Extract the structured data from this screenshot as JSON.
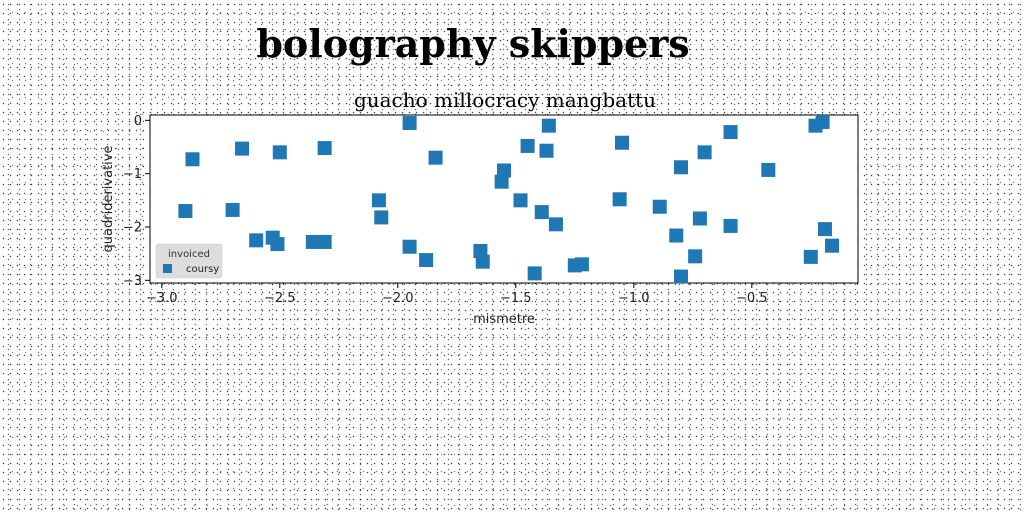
{
  "chart_data": {
    "type": "scatter",
    "title": "bolography skippers",
    "subtitle": "guacho millocracy mangbattu",
    "xlabel": "mismetre",
    "ylabel": "quadriderivative",
    "xlim": [
      -3.05,
      -0.05
    ],
    "ylim": [
      -3.05,
      0.1
    ],
    "xticks": [
      -3.0,
      -2.5,
      -2.0,
      -1.5,
      -1.0,
      -0.5
    ],
    "xtick_labels": [
      "−3.0",
      "−2.5",
      "−2.0",
      "−1.5",
      "−1.0",
      "−0.5"
    ],
    "yticks": [
      0,
      -1,
      -2,
      -3
    ],
    "ytick_labels": [
      "0",
      "−1",
      "−2",
      "−3"
    ],
    "grid": false,
    "legend": {
      "title": "invoiced",
      "placement": "lower-left"
    },
    "series": [
      {
        "name": "coursy",
        "color": "#1f77b4",
        "marker": "square",
        "points": [
          [
            -2.9,
            -1.7
          ],
          [
            -2.87,
            -0.73
          ],
          [
            -2.7,
            -1.68
          ],
          [
            -2.66,
            -0.53
          ],
          [
            -2.6,
            -2.25
          ],
          [
            -2.53,
            -2.2
          ],
          [
            -2.51,
            -2.32
          ],
          [
            -2.5,
            -0.6
          ],
          [
            -2.36,
            -2.28
          ],
          [
            -2.31,
            -2.28
          ],
          [
            -2.31,
            -0.52
          ],
          [
            -2.08,
            -1.5
          ],
          [
            -2.07,
            -1.82
          ],
          [
            -1.95,
            -2.37
          ],
          [
            -1.95,
            -0.05
          ],
          [
            -1.88,
            -2.62
          ],
          [
            -1.84,
            -0.7
          ],
          [
            -1.65,
            -2.45
          ],
          [
            -1.64,
            -2.65
          ],
          [
            -1.56,
            -1.15
          ],
          [
            -1.55,
            -0.94
          ],
          [
            -1.48,
            -1.5
          ],
          [
            -1.45,
            -0.48
          ],
          [
            -1.42,
            -2.87
          ],
          [
            -1.39,
            -1.72
          ],
          [
            -1.37,
            -0.57
          ],
          [
            -1.36,
            -0.1
          ],
          [
            -1.33,
            -1.95
          ],
          [
            -1.25,
            -2.72
          ],
          [
            -1.22,
            -2.7
          ],
          [
            -1.06,
            -1.48
          ],
          [
            -1.05,
            -0.42
          ],
          [
            -0.89,
            -1.62
          ],
          [
            -0.82,
            -2.16
          ],
          [
            -0.8,
            -0.88
          ],
          [
            -0.8,
            -2.93
          ],
          [
            -0.74,
            -2.55
          ],
          [
            -0.72,
            -1.84
          ],
          [
            -0.7,
            -0.6
          ],
          [
            -0.59,
            -1.98
          ],
          [
            -0.59,
            -0.22
          ],
          [
            -0.43,
            -0.93
          ],
          [
            -0.25,
            -2.56
          ],
          [
            -0.23,
            -0.1
          ],
          [
            -0.2,
            -0.03
          ],
          [
            -0.19,
            -2.04
          ],
          [
            -0.16,
            -2.35
          ]
        ]
      }
    ]
  }
}
